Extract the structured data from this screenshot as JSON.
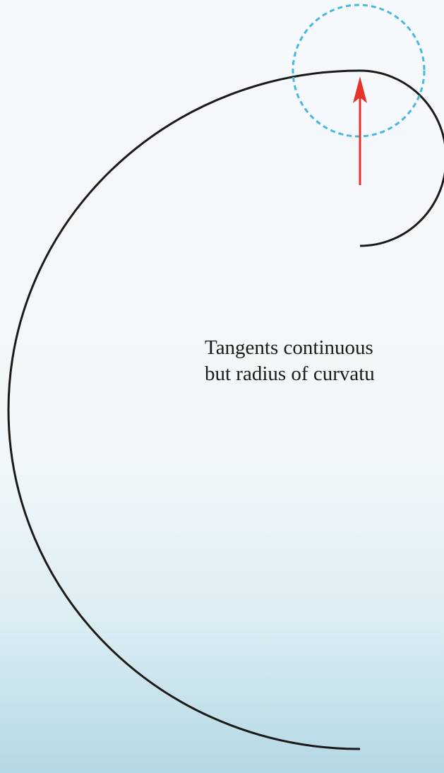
{
  "caption": {
    "line1": "Tangents continuous",
    "line2": "but radius of curvatu"
  }
}
